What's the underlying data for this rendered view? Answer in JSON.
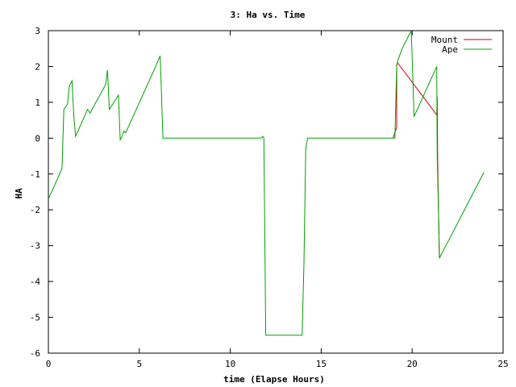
{
  "chart_data": {
    "type": "line",
    "title": "3: Ha vs. Time",
    "xlabel": "time (Elapse Hours)",
    "ylabel": "HA",
    "xlim": [
      0,
      25
    ],
    "ylim": [
      -6,
      3
    ],
    "xticks": [
      0,
      5,
      10,
      15,
      20,
      25
    ],
    "yticks": [
      -6,
      -5,
      -4,
      -3,
      -2,
      -1,
      0,
      1,
      2,
      3
    ],
    "grid": false,
    "legend_position": "top-right",
    "series": [
      {
        "name": "Mount",
        "color": "#cc0000",
        "x": [
          18.95,
          19.15,
          19.15,
          19.2,
          21.35,
          21.38,
          21.4,
          21.45,
          21.5
        ],
        "y": [
          0.0,
          0.3,
          2.05,
          2.1,
          0.65,
          1.15,
          -0.55,
          -2.05,
          -3.35
        ]
      },
      {
        "name": "Ape",
        "color": "#00a000",
        "x": [
          0.0,
          0.75,
          0.85,
          1.05,
          1.15,
          1.3,
          1.4,
          1.5,
          2.15,
          2.3,
          2.45,
          3.15,
          3.25,
          3.35,
          3.85,
          3.95,
          4.05,
          4.15,
          4.25,
          5.9,
          6.15,
          6.3,
          11.7,
          11.8,
          11.85,
          11.95,
          13.95,
          14.05,
          14.15,
          14.25,
          19.05,
          19.15,
          19.2,
          19.45,
          19.95,
          20.05,
          20.1,
          21.35,
          21.38,
          21.45,
          21.5,
          23.95
        ],
        "y": [
          -1.7,
          -0.85,
          0.8,
          0.95,
          1.45,
          1.6,
          0.6,
          0.05,
          0.8,
          0.7,
          0.85,
          1.5,
          1.9,
          0.8,
          1.2,
          -0.05,
          0.05,
          0.2,
          0.15,
          2.0,
          2.3,
          0.0,
          0.0,
          0.05,
          0.0,
          -5.5,
          -5.5,
          -3.5,
          -0.3,
          0.0,
          0.0,
          2.0,
          2.15,
          2.5,
          3.0,
          1.5,
          0.6,
          2.0,
          -0.55,
          -2.05,
          -3.35,
          -0.95
        ]
      }
    ]
  }
}
